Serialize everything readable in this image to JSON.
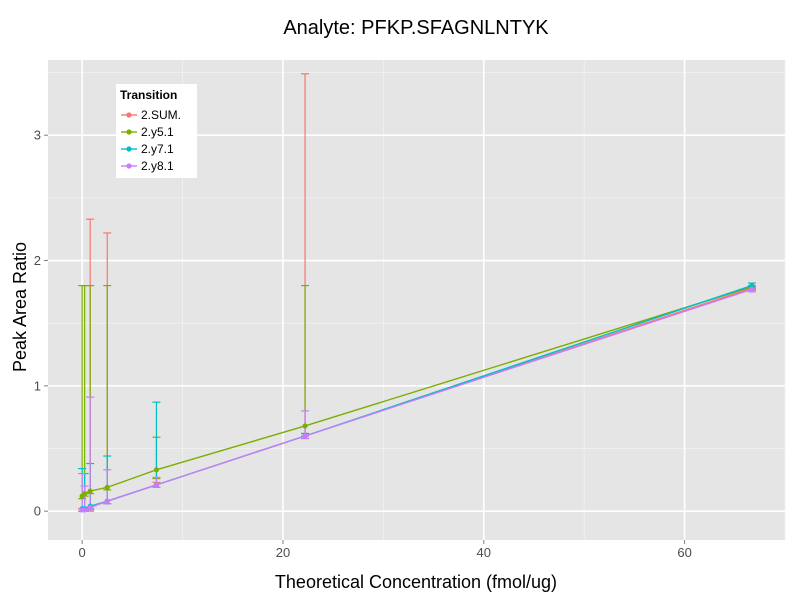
{
  "chart_data": {
    "type": "line",
    "title": "Analyte: PFKP.SFAGNLNTYK",
    "xlabel": "Theoretical Concentration (fmol/ug)",
    "ylabel": "Peak Area Ratio",
    "xlim": [
      -3.4,
      70.0
    ],
    "ylim": [
      -0.23,
      3.6
    ],
    "x_ticks": [
      0,
      20,
      40,
      60
    ],
    "y_ticks": [
      0,
      1,
      2,
      3
    ],
    "grid": true,
    "legend": {
      "title": "Transition",
      "position": "top-left"
    },
    "x": [
      0,
      0.25,
      0.8,
      2.5,
      7.4,
      22.2,
      66.7
    ],
    "series": [
      {
        "name": "2.SUM.",
        "color": "#F8766D",
        "values": [
          0.01,
          0.015,
          0.03,
          0.08,
          0.21,
          0.6,
          1.78
        ],
        "err_low": [
          0.0,
          0.0,
          0.0,
          0.06,
          0.19,
          0.6,
          1.76
        ],
        "err_high": [
          0.02,
          0.03,
          2.33,
          2.22,
          0.23,
          3.49,
          1.79
        ]
      },
      {
        "name": "2.y5.1",
        "color": "#7CAE00",
        "values": [
          0.12,
          0.14,
          0.16,
          0.19,
          0.33,
          0.68,
          1.79
        ],
        "err_low": [
          0.1,
          0.12,
          0.14,
          0.17,
          0.26,
          0.62,
          1.77
        ],
        "err_high": [
          1.8,
          1.8,
          1.8,
          1.8,
          0.59,
          1.8,
          1.8
        ]
      },
      {
        "name": "2.y7.1",
        "color": "#00BFC4",
        "values": [
          0.02,
          0.02,
          0.04,
          0.08,
          0.21,
          0.6,
          1.8
        ],
        "err_low": [
          0.0,
          0.0,
          0.02,
          0.06,
          0.19,
          0.58,
          1.78
        ],
        "err_high": [
          0.34,
          0.3,
          0.38,
          0.44,
          0.87,
          0.62,
          1.82
        ]
      },
      {
        "name": "2.y8.1",
        "color": "#C77CFF",
        "values": [
          0.01,
          0.01,
          0.03,
          0.08,
          0.21,
          0.6,
          1.77
        ],
        "err_low": [
          0.0,
          0.0,
          0.01,
          0.06,
          0.19,
          0.58,
          1.75
        ],
        "err_high": [
          0.3,
          0.2,
          0.91,
          0.33,
          0.27,
          0.8,
          1.79
        ]
      }
    ]
  }
}
